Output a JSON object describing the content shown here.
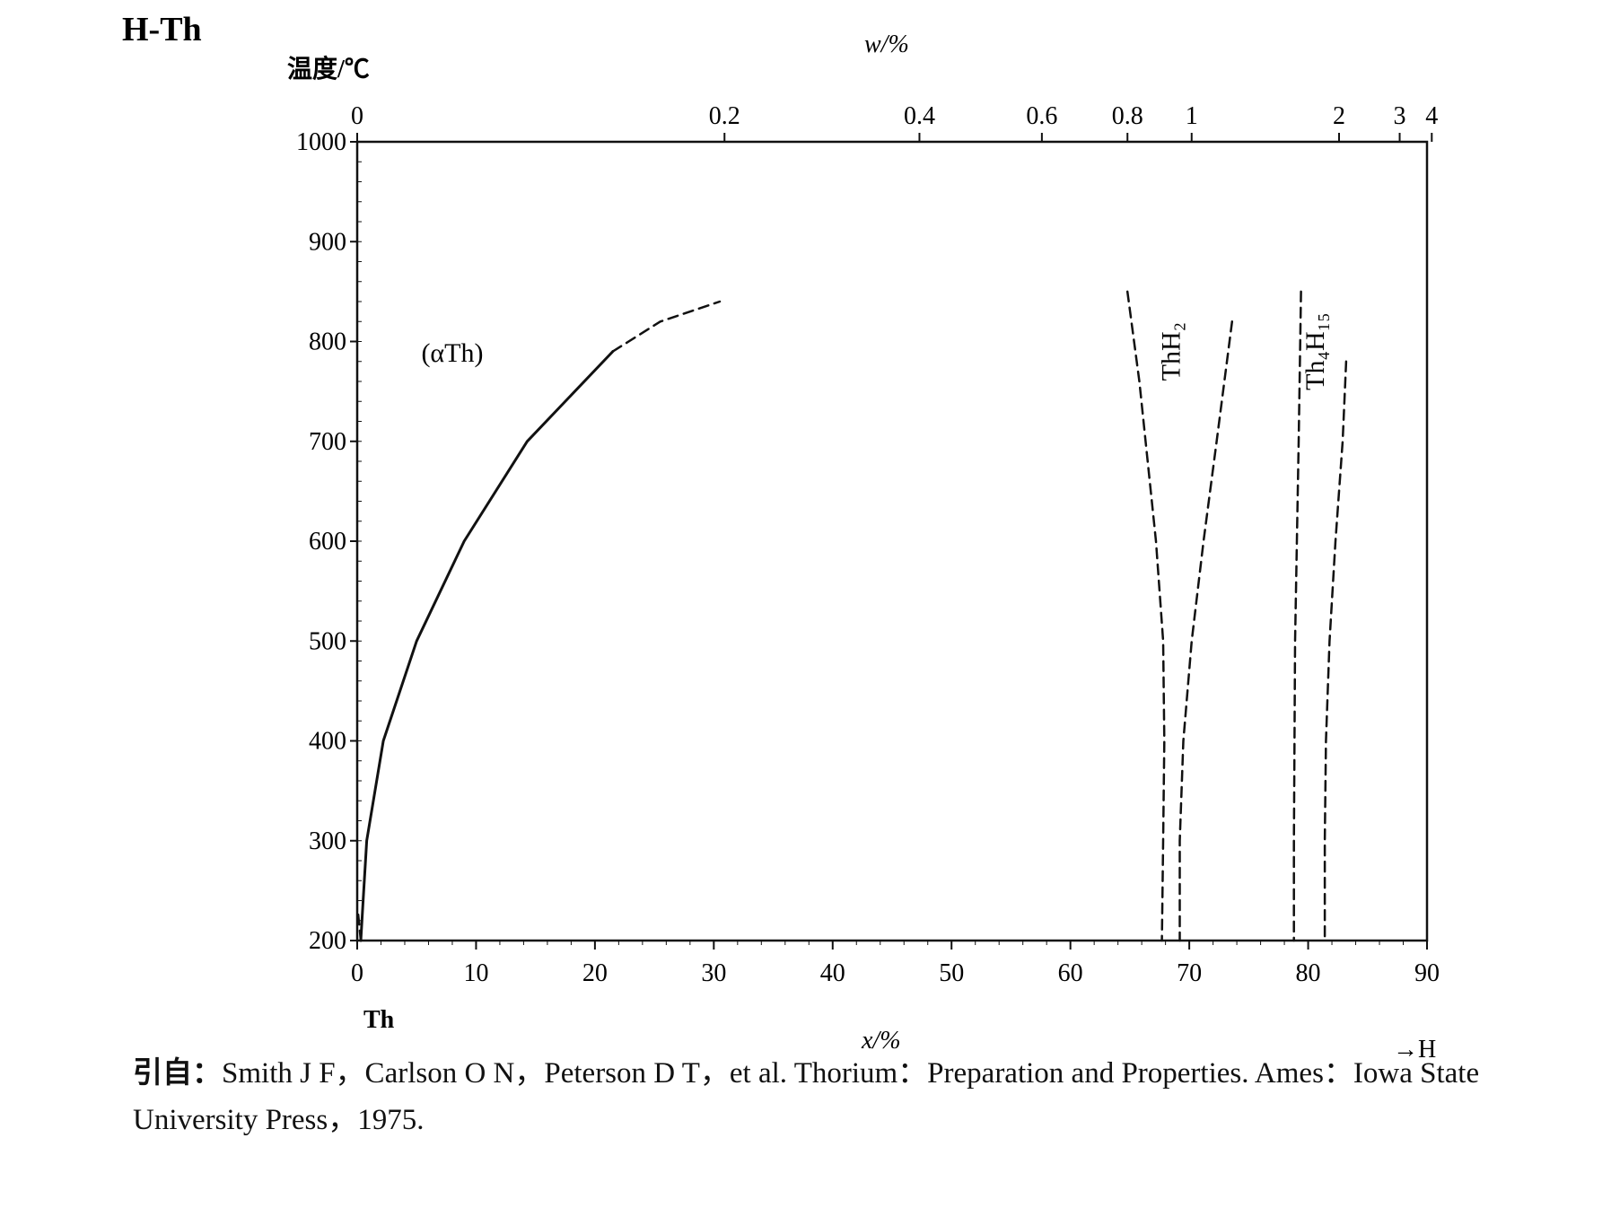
{
  "chart_data": {
    "type": "line",
    "title": "H-Th",
    "ylabel": "温度/℃",
    "xlabel": "x/%",
    "x_top_label": "w/%",
    "ylim": [
      200,
      1000
    ],
    "xlim": [
      0,
      90
    ],
    "y_ticks": [
      200,
      300,
      400,
      500,
      600,
      700,
      800,
      900,
      1000
    ],
    "x_ticks": [
      0,
      10,
      20,
      30,
      40,
      50,
      60,
      70,
      80,
      90
    ],
    "x_top_ticks": [
      {
        "label": "0",
        "x": 0
      },
      {
        "label": "0.2",
        "x": 30.9
      },
      {
        "label": "0.4",
        "x": 47.3
      },
      {
        "label": "0.6",
        "x": 57.6
      },
      {
        "label": "0.8",
        "x": 64.8
      },
      {
        "label": "1",
        "x": 70.2
      },
      {
        "label": "2",
        "x": 82.6
      },
      {
        "label": "3",
        "x": 87.7
      },
      {
        "label": "4",
        "x": 90.4
      }
    ],
    "left_end_label": "Th",
    "right_end_label": "→H",
    "phase_labels": [
      {
        "text": "(αTh)",
        "x": 8,
        "y": 780
      },
      {
        "text": "ThH₂",
        "x": 69.2,
        "y": 790,
        "rotated": true
      },
      {
        "text": "Th₄H₁₅",
        "x": 81.3,
        "y": 790,
        "rotated": true
      }
    ],
    "series": [
      {
        "style": "solid",
        "points": [
          [
            0.3,
            200
          ],
          [
            0.5,
            240
          ],
          [
            0.8,
            300
          ],
          [
            2.2,
            400
          ],
          [
            5.0,
            500
          ],
          [
            9.0,
            600
          ],
          [
            14.3,
            700
          ],
          [
            21.5,
            790
          ]
        ]
      },
      {
        "style": "dashed",
        "points": [
          [
            21.5,
            790
          ],
          [
            25.5,
            820
          ],
          [
            30.5,
            840
          ]
        ]
      },
      {
        "style": "dashed",
        "points": [
          [
            0.3,
            200
          ],
          [
            0.05,
            230
          ]
        ]
      },
      {
        "style": "dashed",
        "points": [
          [
            64.8,
            850
          ],
          [
            65.8,
            760
          ],
          [
            67.2,
            600
          ],
          [
            67.8,
            500
          ],
          [
            67.9,
            400
          ],
          [
            67.8,
            300
          ],
          [
            67.7,
            200
          ]
        ]
      },
      {
        "style": "dashed",
        "points": [
          [
            73.6,
            820
          ],
          [
            72.3,
            700
          ],
          [
            71.2,
            600
          ],
          [
            70.2,
            500
          ],
          [
            69.5,
            400
          ],
          [
            69.2,
            300
          ],
          [
            69.2,
            200
          ]
        ]
      },
      {
        "style": "dashed",
        "points": [
          [
            79.4,
            850
          ],
          [
            79.2,
            700
          ],
          [
            78.9,
            500
          ],
          [
            78.8,
            300
          ],
          [
            78.8,
            200
          ]
        ]
      },
      {
        "style": "dashed",
        "points": [
          [
            83.2,
            780
          ],
          [
            82.9,
            700
          ],
          [
            82.3,
            600
          ],
          [
            81.8,
            500
          ],
          [
            81.5,
            400
          ],
          [
            81.4,
            300
          ],
          [
            81.4,
            200
          ]
        ]
      }
    ]
  },
  "citation": {
    "prefix": "引自：",
    "text": "Smith J F，Carlson O N，Peterson D T，et al. Thorium：Preparation and Properties. Ames：Iowa State University Press，1975."
  }
}
